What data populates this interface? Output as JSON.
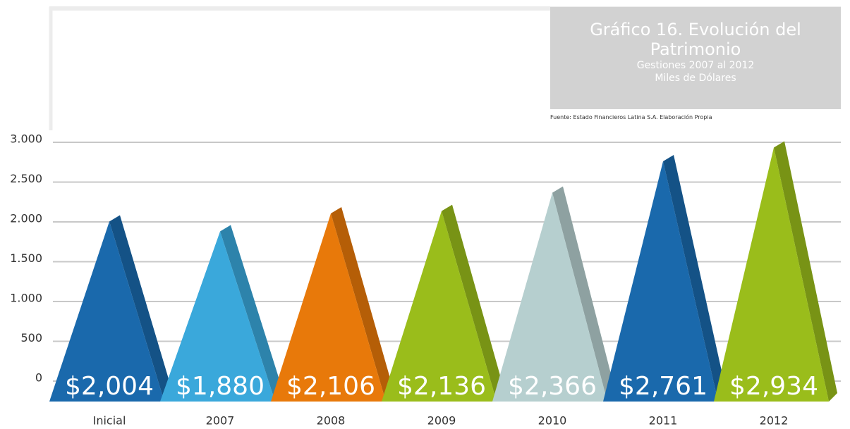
{
  "chart_data": {
    "type": "triangle-bar",
    "title": "Gráfico 16. Evolución del Patrimonio",
    "subtitle": "Gestiones 2007 al 2012",
    "unit": "Miles de Dólares",
    "source": "Fuente: Estado Financieros Latina S.A. Elaboración Propia",
    "categories": [
      "Inicial",
      "2007",
      "2008",
      "2009",
      "2010",
      "2011",
      "2012"
    ],
    "values": [
      2004,
      1880,
      2106,
      2136,
      2366,
      2761,
      2934
    ],
    "value_labels": [
      "$2,004",
      "$1,880",
      "$2,106",
      "$2,136",
      "$2,366",
      "$2,761",
      "$2,934"
    ],
    "colors": [
      "#1a69ac",
      "#3aa8db",
      "#e8790a",
      "#9abd1b",
      "#b6cfcf",
      "#1a69ac",
      "#9abd1b"
    ],
    "ylim": [
      0,
      3000
    ],
    "yticks": [
      0,
      500,
      {
        "value": 1000,
        "label": "1.000"
      },
      {
        "value": 1500,
        "label": "1.500"
      },
      {
        "value": 2000,
        "label": "2.000"
      },
      {
        "value": 2500,
        "label": "2.500"
      },
      {
        "value": 3000,
        "label": "3.000"
      }
    ],
    "grid": true
  }
}
